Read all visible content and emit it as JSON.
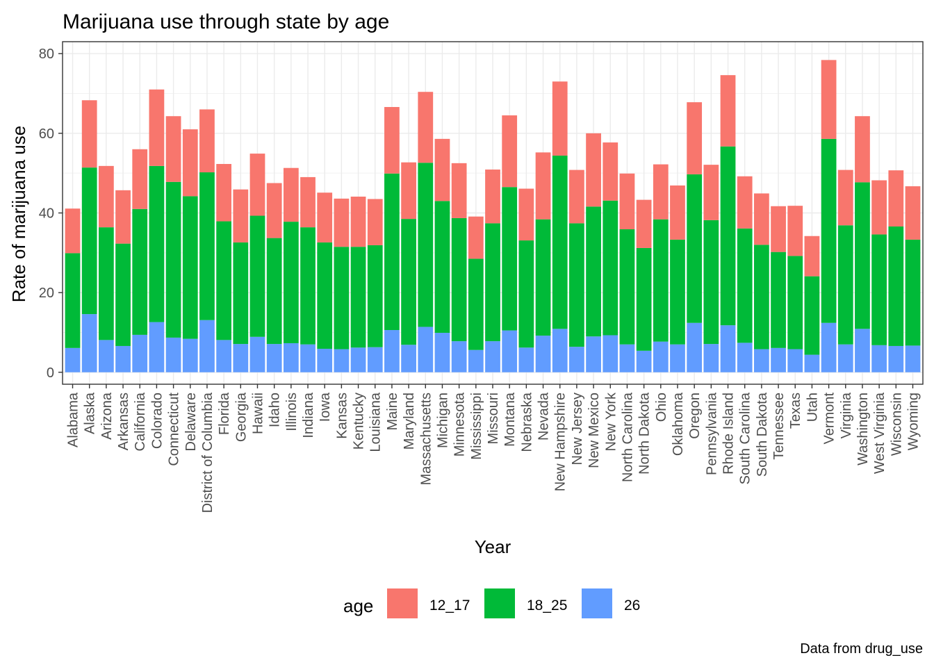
{
  "chart_data": {
    "type": "bar",
    "stacked": true,
    "title": "Marijuana use through state by age",
    "xlabel": "Year",
    "ylabel": "Rate of marijuana use",
    "caption": "Data from drug_use",
    "ylim": [
      -3,
      83
    ],
    "yticks": [
      0,
      20,
      40,
      60,
      80
    ],
    "grid": true,
    "legend_position": "bottom",
    "legend_title": "age",
    "categories": [
      "Alabama",
      "Alaska",
      "Arizona",
      "Arkansas",
      "California",
      "Colorado",
      "Connecticut",
      "Delaware",
      "District of Columbia",
      "Florida",
      "Georgia",
      "Hawaii",
      "Idaho",
      "Illinois",
      "Indiana",
      "Iowa",
      "Kansas",
      "Kentucky",
      "Louisiana",
      "Maine",
      "Maryland",
      "Massachusetts",
      "Michigan",
      "Minnesota",
      "Mississippi",
      "Missouri",
      "Montana",
      "Nebraska",
      "Nevada",
      "New Hampshire",
      "New Jersey",
      "New Mexico",
      "New York",
      "North Carolina",
      "North Dakota",
      "Ohio",
      "Oklahoma",
      "Oregon",
      "Pennsylvania",
      "Rhode Island",
      "South Carolina",
      "South Dakota",
      "Tennessee",
      "Texas",
      "Utah",
      "Vermont",
      "Virginia",
      "Washington",
      "West Virginia",
      "Wisconsin",
      "Wyoming"
    ],
    "series": [
      {
        "name": "26",
        "color": "#619CFF",
        "values": [
          6.1,
          14.6,
          8.1,
          6.6,
          9.4,
          12.6,
          8.7,
          8.4,
          13.1,
          8.1,
          7.1,
          8.9,
          7.1,
          7.3,
          7.0,
          5.9,
          5.8,
          6.2,
          6.3,
          10.6,
          6.9,
          11.4,
          9.9,
          7.8,
          5.6,
          7.8,
          10.5,
          6.2,
          9.2,
          10.9,
          6.4,
          9.0,
          9.3,
          7.0,
          5.4,
          7.7,
          7.0,
          12.4,
          7.1,
          11.8,
          7.4,
          5.8,
          6.1,
          5.8,
          4.4,
          12.4,
          7.0,
          10.9,
          6.8,
          6.6,
          6.7
        ]
      },
      {
        "name": "18_25",
        "color": "#00BA38",
        "values": [
          23.8,
          36.8,
          28.3,
          25.7,
          31.6,
          39.2,
          39.1,
          35.8,
          37.1,
          29.8,
          25.5,
          30.4,
          26.6,
          30.5,
          29.4,
          26.7,
          25.7,
          25.3,
          25.6,
          39.3,
          31.6,
          41.2,
          33.1,
          30.9,
          22.9,
          29.6,
          36.0,
          26.9,
          29.2,
          43.5,
          31.0,
          32.6,
          33.8,
          28.9,
          25.8,
          30.7,
          26.3,
          37.3,
          31.1,
          44.9,
          28.7,
          26.2,
          24.1,
          23.4,
          19.7,
          46.2,
          29.9,
          36.8,
          27.8,
          30.0,
          26.6
        ]
      },
      {
        "name": "12_17",
        "color": "#F8766D",
        "values": [
          11.2,
          16.9,
          15.4,
          13.4,
          15.0,
          19.2,
          16.5,
          16.8,
          15.8,
          14.4,
          13.3,
          15.6,
          13.8,
          13.5,
          12.6,
          12.5,
          12.1,
          12.6,
          11.6,
          16.7,
          14.2,
          17.8,
          15.6,
          13.8,
          10.6,
          13.5,
          18.0,
          13.0,
          16.8,
          18.6,
          13.4,
          18.4,
          14.6,
          14.0,
          12.1,
          13.8,
          13.6,
          18.1,
          13.9,
          17.9,
          13.1,
          12.9,
          11.5,
          12.6,
          10.1,
          19.8,
          13.9,
          16.6,
          13.6,
          14.1,
          13.4
        ]
      }
    ],
    "legend_entries": [
      {
        "label": "12_17",
        "color": "#F8766D"
      },
      {
        "label": "18_25",
        "color": "#00BA38"
      },
      {
        "label": "26",
        "color": "#619CFF"
      }
    ]
  }
}
